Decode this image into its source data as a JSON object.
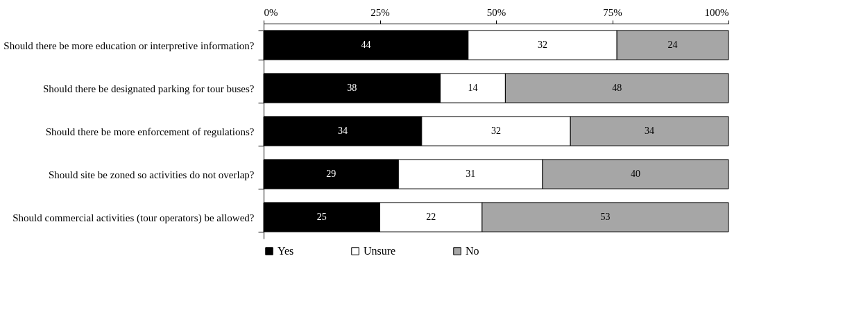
{
  "chart_data": {
    "type": "bar",
    "orientation": "horizontal",
    "stacked": true,
    "categories": [
      "Should there be more education or interpretive information?",
      "Should there be designated parking for tour buses?",
      "Should there be more enforcement of regulations?",
      "Should site be zoned so activities do not overlap?",
      "Should commercial activities (tour operators) be allowed?"
    ],
    "series": [
      {
        "name": "Yes",
        "color": "#000000",
        "values": [
          44,
          38,
          34,
          29,
          25
        ]
      },
      {
        "name": "Unsure",
        "color": "#ffffff",
        "values": [
          32,
          14,
          32,
          31,
          22
        ]
      },
      {
        "name": "No",
        "color": "#a6a6a6",
        "values": [
          24,
          48,
          34,
          40,
          53
        ]
      }
    ],
    "xlim": [
      0,
      100
    ],
    "xticks": [
      {
        "value": 0,
        "label": "0%"
      },
      {
        "value": 25,
        "label": "25%"
      },
      {
        "value": 50,
        "label": "50%"
      },
      {
        "value": 75,
        "label": "75%"
      },
      {
        "value": 100,
        "label": "100%"
      }
    ],
    "data_labels": true,
    "legend": "bottom",
    "grid": false
  }
}
